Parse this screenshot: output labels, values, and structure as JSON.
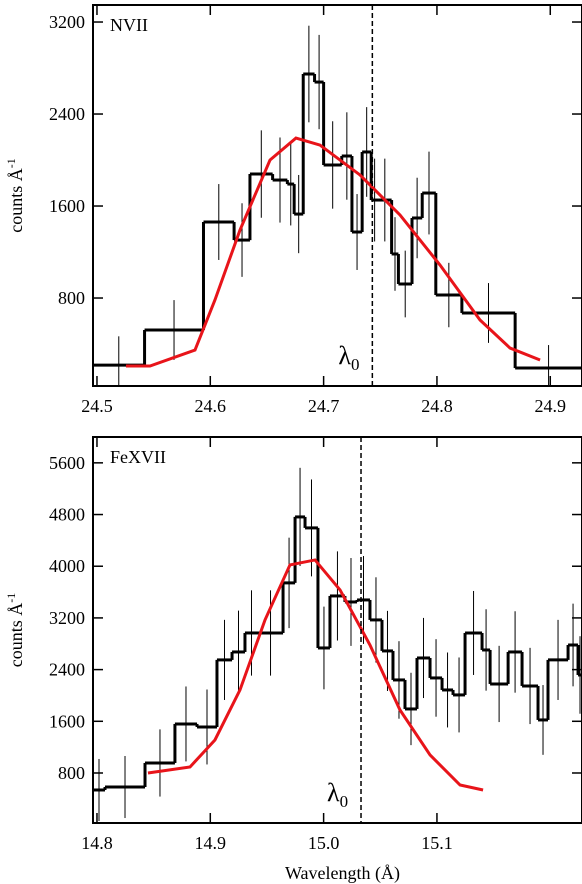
{
  "chart_data": [
    {
      "type": "histogram",
      "annotation": "NVII",
      "annotation_color": "#1a9a1a",
      "ylabel": "counts Å",
      "ylabel_sup": "-1",
      "bins": [
        24.4965,
        24.542,
        24.594,
        24.621,
        24.635,
        24.655,
        24.668,
        24.674,
        24.682,
        24.692,
        24.7,
        24.716,
        24.725,
        24.734,
        24.742,
        24.748,
        24.76,
        24.766,
        24.778,
        24.787,
        24.799,
        24.822,
        24.869,
        24.928
      ],
      "values": [
        217,
        522,
        1461,
        1304,
        1878,
        1826,
        1791,
        1530,
        2748,
        2678,
        1957,
        2035,
        1374,
        2070,
        1652,
        1652,
        1183,
        922,
        1496,
        1713,
        826,
        670,
        191
      ],
      "errors": [
        250,
        260,
        330,
        320,
        380,
        370,
        360,
        340,
        420,
        410,
        380,
        380,
        330,
        390,
        360,
        360,
        320,
        290,
        350,
        360,
        280,
        260,
        200
      ],
      "color": "#000000",
      "model": {
        "x": [
          24.5256,
          24.5468,
          24.5865,
          24.6041,
          24.6262,
          24.6527,
          24.6756,
          24.6968,
          24.7321,
          24.7674,
          24.8027,
          24.838,
          24.8645,
          24.891
        ],
        "y": [
          209,
          209,
          348,
          783,
          1391,
          2000,
          2191,
          2130,
          1870,
          1522,
          1087,
          609,
          365,
          261
        ],
        "color": "#e8141a"
      },
      "line_x": 24.743,
      "line_label": "λ",
      "line_label_sub": "0",
      "xlim": [
        24.4965,
        24.928
      ],
      "ylim": [
        35,
        3348
      ],
      "xticks": [
        24.5,
        24.6,
        24.7,
        24.8,
        24.9
      ],
      "yticks": [
        800,
        1600,
        2400,
        3200
      ]
    },
    {
      "type": "histogram",
      "annotation": "FeXVII",
      "annotation_color": "#1a9a1a",
      "ylabel": "counts Å",
      "ylabel_sup": "-1",
      "xlabel": "Wavelength (Å)",
      "bins": [
        14.7965,
        14.8071,
        14.8424,
        14.8688,
        14.8883,
        14.9059,
        14.9192,
        14.9306,
        14.9421,
        14.9642,
        14.9748,
        14.9836,
        14.995,
        15.0056,
        15.0188,
        15.0295,
        15.0409,
        15.0515,
        15.0612,
        15.0718,
        15.0824,
        15.0939,
        15.1045,
        15.1142,
        15.1248,
        15.1398,
        15.1469,
        15.1628,
        15.1751,
        15.1892,
        15.198,
        15.2157,
        15.2245,
        15.228
      ],
      "values": [
        537,
        583,
        955,
        1559,
        1512,
        2550,
        2673,
        2967,
        2967,
        3742,
        4763,
        4593,
        2735,
        3540,
        3447,
        3478,
        3169,
        2689,
        2240,
        1791,
        2580,
        2271,
        2085,
        2008,
        2967,
        2704,
        2178,
        2673,
        2147,
        1621,
        2550,
        2781,
        2317
      ],
      "errors": [
        480,
        480,
        520,
        580,
        580,
        620,
        640,
        660,
        660,
        700,
        760,
        750,
        640,
        690,
        680,
        680,
        660,
        620,
        600,
        560,
        620,
        600,
        580,
        580,
        650,
        630,
        590,
        630,
        590,
        540,
        620,
        640,
        600
      ],
      "color": "#000000",
      "model": {
        "x": [
          14.845,
          14.8821,
          14.9041,
          14.9262,
          14.9483,
          14.9703,
          14.9924,
          15.0145,
          15.0409,
          15.0674,
          15.0939,
          15.1204,
          15.1407
        ],
        "y": [
          800,
          893,
          1311,
          2085,
          3169,
          4020,
          4097,
          3633,
          2781,
          1775,
          1079,
          614,
          537
        ],
        "color": "#e8141a"
      },
      "line_x": 15.033,
      "line_label": "λ",
      "line_label_sub": "0",
      "xlim": [
        14.7965,
        15.228
      ],
      "ylim": [
        26,
        6000
      ],
      "xticks": [
        14.8,
        14.9,
        {
          "value": 15,
          "label": "15.0"
        },
        15.1
      ],
      "yticks": [
        800,
        1600,
        2400,
        3200,
        4000,
        4800,
        5600
      ]
    }
  ]
}
